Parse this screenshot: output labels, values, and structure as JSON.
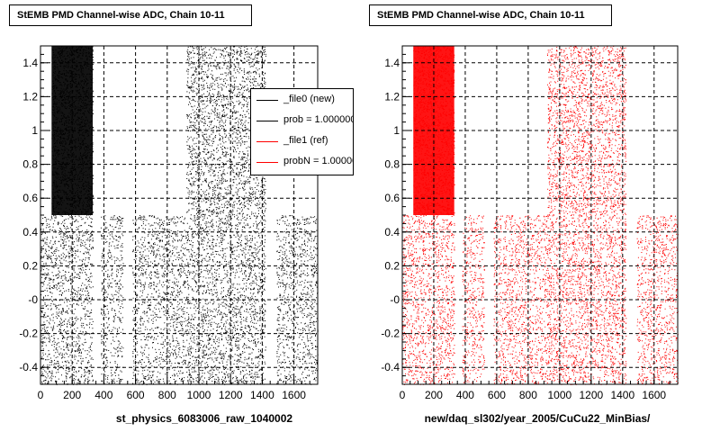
{
  "window": {
    "footer_text": ""
  },
  "panels": [
    {
      "title": "StEMB PMD Channel-wise ADC, Chain 10-11",
      "xlabel": "st_physics_6083006_raw_1040002"
    },
    {
      "title": "StEMB PMD Channel-wise ADC, Chain 10-11",
      "xlabel": "new/daq_sl302/year_2005/CuCu22_MinBias/"
    }
  ],
  "legend": {
    "entries": [
      {
        "label": "_file0 (new)",
        "color": "#000000"
      },
      {
        "label": "prob = 1.000000",
        "color": "#000000"
      },
      {
        "label": "_file1 (ref)",
        "color": "#ff0000"
      },
      {
        "label": "probN = 1.000000",
        "color": "#ff0000"
      }
    ]
  },
  "chart_data": [
    {
      "type": "scatter",
      "title": "StEMB PMD Channel-wise ADC, Chain 10-11",
      "xlabel": "st_physics_6083006_raw_1040002",
      "ylabel": "",
      "xlim": [
        0,
        1750
      ],
      "ylim": [
        -0.5,
        1.5
      ],
      "xticks": [
        0,
        200,
        400,
        600,
        800,
        1000,
        1200,
        1400,
        1600
      ],
      "yticks": [
        -0.4,
        -0.2,
        0,
        0.2,
        0.4,
        0.6,
        0.8,
        1,
        1.2,
        1.4
      ],
      "ytick_labels": [
        "-0.4",
        "-0.2",
        "-0",
        "0.2",
        "0.4",
        "0.6",
        "0.8",
        "1",
        "1.2",
        "1.4"
      ],
      "grid": true,
      "legend_position": "top-right",
      "series_color": "#000000",
      "bands": [
        {
          "x": [
            0,
            330
          ],
          "y": [
            -0.5,
            0.5
          ],
          "density": 0.55
        },
        {
          "x": [
            70,
            330
          ],
          "y": [
            0.5,
            1.5
          ],
          "density": 1.0
        },
        {
          "x": [
            380,
            520
          ],
          "y": [
            -0.5,
            0.5
          ],
          "density": 0.45
        },
        {
          "x": [
            580,
            920
          ],
          "y": [
            -0.5,
            0.5
          ],
          "density": 0.5
        },
        {
          "x": [
            920,
            1420
          ],
          "y": [
            -0.5,
            1.5
          ],
          "density": 0.6
        },
        {
          "x": [
            1490,
            1750
          ],
          "y": [
            -0.5,
            0.5
          ],
          "density": 0.5
        }
      ]
    },
    {
      "type": "scatter",
      "title": "StEMB PMD Channel-wise ADC, Chain 10-11",
      "xlabel": "new/daq_sl302/year_2005/CuCu22_MinBias/",
      "ylabel": "",
      "xlim": [
        0,
        1750
      ],
      "ylim": [
        -0.5,
        1.5
      ],
      "xticks": [
        0,
        200,
        400,
        600,
        800,
        1000,
        1200,
        1400,
        1600
      ],
      "yticks": [
        -0.4,
        -0.2,
        0,
        0.2,
        0.4,
        0.6,
        0.8,
        1,
        1.2,
        1.4
      ],
      "ytick_labels": [
        "-0.4",
        "-0.2",
        "-0",
        "0.2",
        "0.4",
        "0.6",
        "0.8",
        "1",
        "1.2",
        "1.4"
      ],
      "grid": true,
      "series_color": "#ff0000",
      "bands": [
        {
          "x": [
            0,
            330
          ],
          "y": [
            -0.5,
            0.5
          ],
          "density": 0.55
        },
        {
          "x": [
            70,
            330
          ],
          "y": [
            0.5,
            1.5
          ],
          "density": 1.0
        },
        {
          "x": [
            380,
            520
          ],
          "y": [
            -0.5,
            0.5
          ],
          "density": 0.45
        },
        {
          "x": [
            580,
            920
          ],
          "y": [
            -0.5,
            0.5
          ],
          "density": 0.5
        },
        {
          "x": [
            920,
            1420
          ],
          "y": [
            -0.5,
            1.5
          ],
          "density": 0.6
        },
        {
          "x": [
            1490,
            1750
          ],
          "y": [
            -0.5,
            0.5
          ],
          "density": 0.5
        }
      ]
    }
  ]
}
